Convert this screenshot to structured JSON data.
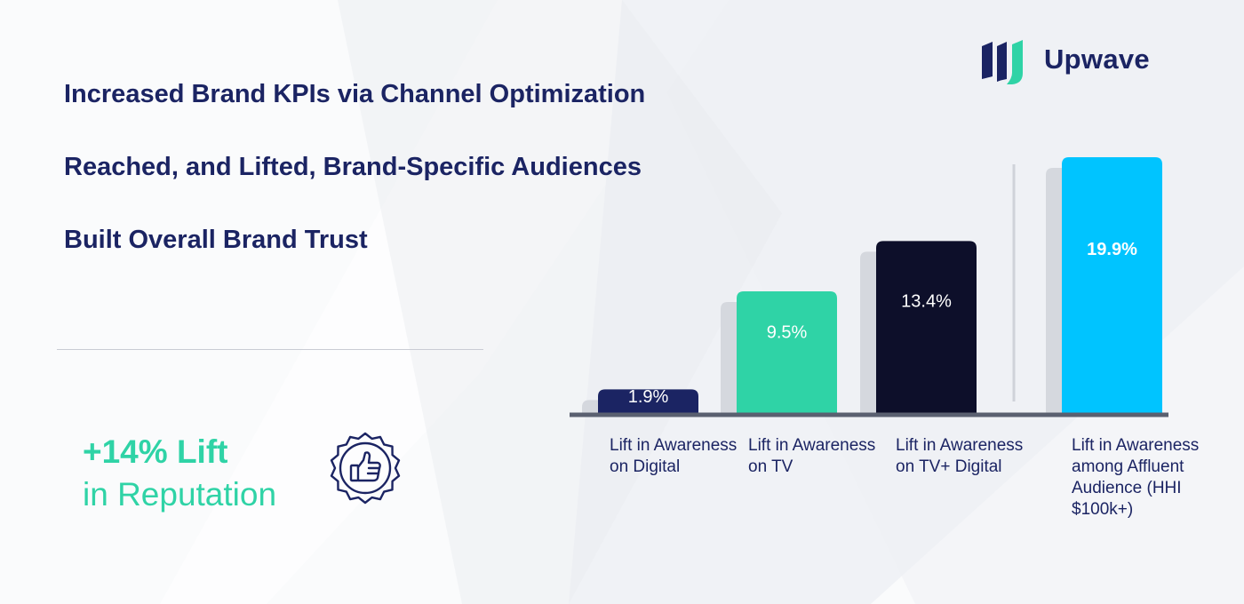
{
  "headlines": [
    "Increased Brand KPIs via Channel Optimization",
    "Reached, and Lifted, Brand-Specific Audiences",
    "Built Overall Brand Trust"
  ],
  "reputation": {
    "value": "+14% Lift",
    "label": "in Reputation",
    "icon": "thumbs-up-badge-icon"
  },
  "brand": {
    "name": "Upwave",
    "logo_icon": "upwave-logo-icon"
  },
  "colors": {
    "navy": "#1b2463",
    "teal": "#2fd3a6",
    "dark": "#0d0f2a",
    "cyan": "#00c4ff",
    "shadow": "#d5d8de"
  },
  "chart_data": {
    "type": "bar",
    "categories": [
      "Lift in Awareness on Digital",
      "Lift in Awareness on TV",
      "Lift in Awareness on TV+ Digital",
      "Lift in Awareness among Affluent Audience (HHI $100k+)"
    ],
    "values": [
      1.9,
      9.5,
      13.4,
      19.9
    ],
    "value_labels": [
      "1.9%",
      "9.5%",
      "13.4%",
      "19.9%"
    ],
    "bar_colors": [
      "#1b2463",
      "#2fd3a6",
      "#0d0f2a",
      "#00c4ff"
    ],
    "ylim": [
      0,
      19.9
    ],
    "grid": false,
    "title": "",
    "xlabel": "",
    "ylabel": ""
  }
}
